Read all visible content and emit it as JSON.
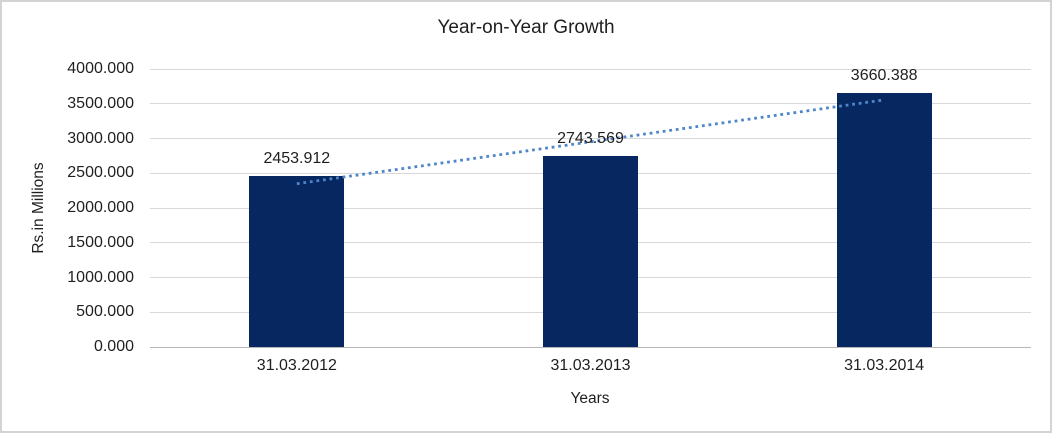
{
  "chart_data": {
    "type": "bar",
    "title": "Year-on-Year Growth",
    "xlabel": "Years",
    "ylabel": "Rs.in Millions",
    "categories": [
      "31.03.2012",
      "31.03.2013",
      "31.03.2014"
    ],
    "values": [
      2453.912,
      2743.569,
      3660.388
    ],
    "data_labels": [
      "2453.912",
      "2743.569",
      "3660.388"
    ],
    "ylim": [
      0,
      4000
    ],
    "y_ticks": [
      {
        "value": 4000,
        "label": "4000.000"
      },
      {
        "value": 3500,
        "label": "3500.000"
      },
      {
        "value": 3000,
        "label": "3000.000"
      },
      {
        "value": 2500,
        "label": "2500.000"
      },
      {
        "value": 2000,
        "label": "2000.000"
      },
      {
        "value": 1500,
        "label": "1500.000"
      },
      {
        "value": 1000,
        "label": "1000.000"
      },
      {
        "value": 500,
        "label": "500.000"
      },
      {
        "value": 0,
        "label": "0.000"
      }
    ],
    "grid": true,
    "legend": false,
    "trendline": {
      "type": "linear",
      "stroke": "dotted"
    },
    "colors": {
      "bar": "#062760",
      "trendline": "#4f86c9",
      "gridline": "#d9d9d9",
      "axis_line": "#b7b7b7",
      "text": "#1f1f1f",
      "border": "#d3d3d3",
      "background": "#ffffff"
    }
  }
}
